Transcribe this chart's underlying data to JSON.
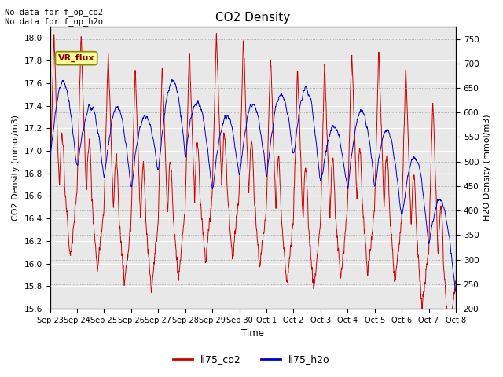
{
  "title": "CO2 Density",
  "xlabel": "Time",
  "ylabel_left": "CO2 Density (mmol/m3)",
  "ylabel_right": "H2O Density (mmol/m3)",
  "ylim_left": [
    15.6,
    18.1
  ],
  "ylim_right": [
    200,
    775
  ],
  "yticks_left": [
    15.6,
    15.8,
    16.0,
    16.2,
    16.4,
    16.6,
    16.8,
    17.0,
    17.2,
    17.4,
    17.6,
    17.8,
    18.0
  ],
  "yticks_right": [
    200,
    250,
    300,
    350,
    400,
    450,
    500,
    550,
    600,
    650,
    700,
    750
  ],
  "xtick_labels": [
    "Sep 23",
    "Sep 24",
    "Sep 25",
    "Sep 26",
    "Sep 27",
    "Sep 28",
    "Sep 29",
    "Sep 30",
    "Oct 1",
    "Oct 2",
    "Oct 3",
    "Oct 4",
    "Oct 5",
    "Oct 6",
    "Oct 7",
    "Oct 8"
  ],
  "no_data_text": "No data for f_op_co2\nNo data for f_op_h2o",
  "vr_flux_label": "VR_flux",
  "legend_labels": [
    "li75_co2",
    "li75_h2o"
  ],
  "legend_colors": [
    "#cc0000",
    "#0000cc"
  ],
  "line_color_co2": "#cc0000",
  "line_color_h2o": "#0000cc",
  "fig_bg_color": "#ffffff",
  "plot_area_bg": "#e8e8e8",
  "grid_color": "#ffffff"
}
